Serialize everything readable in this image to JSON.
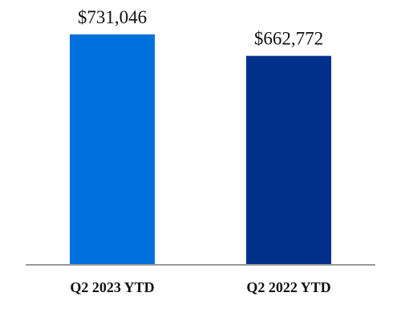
{
  "chart_data": {
    "type": "bar",
    "categories": [
      "Q2 2023 YTD",
      "Q2 2022 YTD"
    ],
    "values": [
      731046,
      662772
    ],
    "data_labels": [
      "$731,046",
      "$662,772"
    ],
    "colors": [
      "#0070DD",
      "#00308A"
    ],
    "axis_color": "#999999",
    "ylim": [
      0,
      840000
    ],
    "grid": false,
    "legend": "none"
  }
}
